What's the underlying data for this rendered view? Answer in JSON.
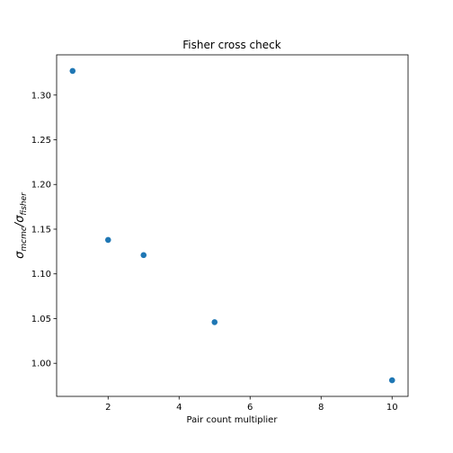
{
  "chart_data": {
    "type": "scatter",
    "title": "Fisher cross check",
    "xlabel": "Pair count multiplier",
    "ylabel": "σmcmc/σfisher",
    "ylabel_main": "σ",
    "ylabel_sub1": "mcmc",
    "ylabel_slash": "/σ",
    "ylabel_sub2": "fisher",
    "xlim": [
      0.55,
      10.45
    ],
    "ylim": [
      0.963,
      1.345
    ],
    "xticks": [
      2,
      4,
      6,
      8,
      10
    ],
    "xtick_labels": [
      "2",
      "4",
      "6",
      "8",
      "10"
    ],
    "yticks": [
      1.0,
      1.05,
      1.1,
      1.15,
      1.2,
      1.25,
      1.3
    ],
    "ytick_labels": [
      "1.00",
      "1.05",
      "1.10",
      "1.15",
      "1.20",
      "1.25",
      "1.30"
    ],
    "grid": false,
    "legend": null,
    "color": "#1f77b4",
    "x": [
      1,
      2,
      3,
      5,
      10
    ],
    "y": [
      1.327,
      1.138,
      1.121,
      1.046,
      0.981
    ]
  }
}
